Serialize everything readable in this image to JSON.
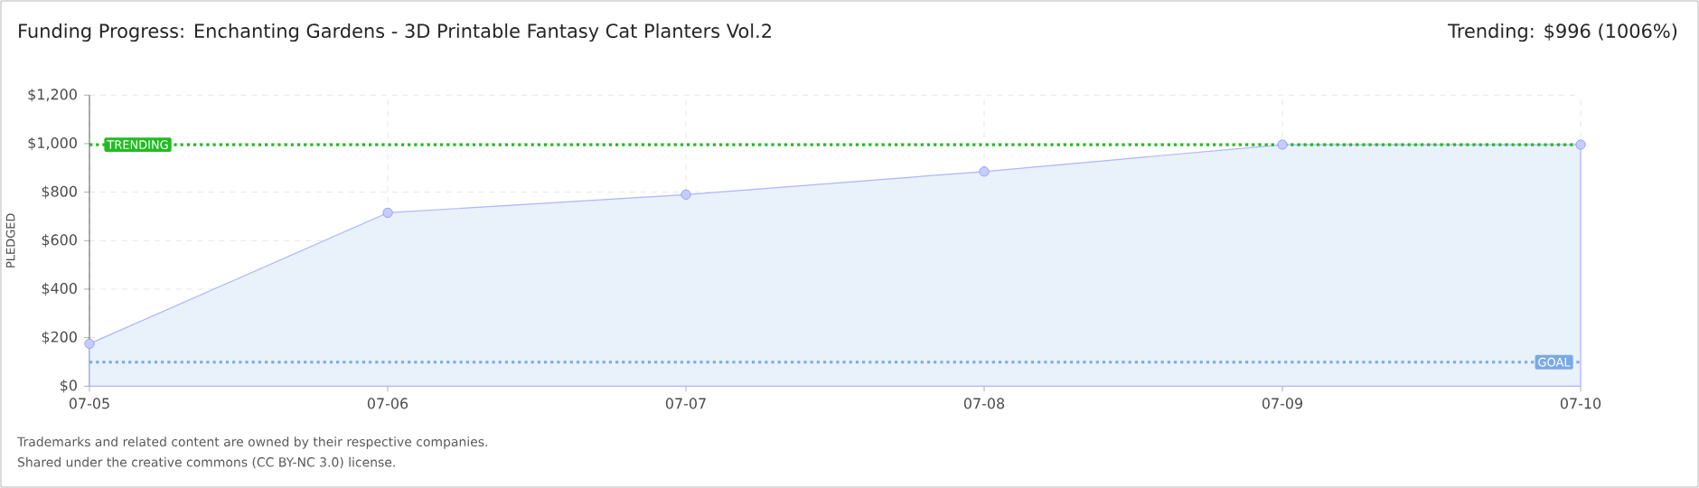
{
  "chart_data": {
    "type": "area",
    "title": "Funding Progress: Enchanting Gardens - 3D Printable Fantasy Cat Planters Vol.2",
    "ylabel": "PLEDGED",
    "categories": [
      "07-05",
      "07-06",
      "07-07",
      "07-08",
      "07-09",
      "07-10"
    ],
    "series": [
      {
        "color": "#e9f1fb",
        "values": [
          175,
          715,
          790,
          885,
          996,
          996
        ]
      }
    ],
    "ylim": [
      0,
      1200
    ],
    "yticks": [
      {
        "value": 0,
        "label": "$0"
      },
      {
        "value": 200,
        "label": "$200"
      },
      {
        "value": 400,
        "label": "$400"
      },
      {
        "value": 600,
        "label": "$600"
      },
      {
        "value": 800,
        "label": "$800"
      },
      {
        "value": 1000,
        "label": "$1,000"
      },
      {
        "value": 1200,
        "label": "$1,200"
      }
    ],
    "grid": true,
    "marker": "circle",
    "ref_lines": [
      {
        "axis": "y",
        "value": 996,
        "label": "TRENDING",
        "color": "#22bb22",
        "line_style": "dotted"
      },
      {
        "axis": "y",
        "value": 99,
        "label": "GOAL",
        "color": "#7aaae6",
        "line_style": "dotted"
      }
    ],
    "annotations": [
      "Trending: $996 (1006%)",
      "Trademarks and related content are owned by their respective companies.",
      "Shared under the creative commons (CC BY-NC 3.0) license."
    ]
  }
}
